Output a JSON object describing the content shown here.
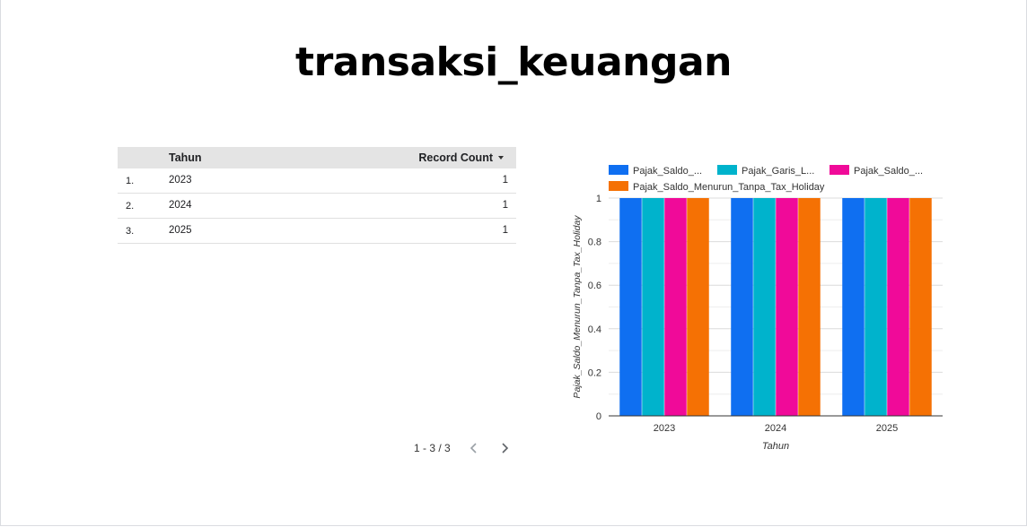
{
  "report": {
    "title": "transaksi_keuangan"
  },
  "table": {
    "headers": {
      "year": "Tahun",
      "count": "Record Count"
    },
    "rows": [
      {
        "num": "1.",
        "year": "2023",
        "count": "1"
      },
      {
        "num": "2.",
        "year": "2024",
        "count": "1"
      },
      {
        "num": "3.",
        "year": "2025",
        "count": "1"
      }
    ],
    "pagination": "1 - 3 / 3"
  },
  "chart_data": {
    "type": "bar",
    "categories": [
      "2023",
      "2024",
      "2025"
    ],
    "series": [
      {
        "name": "Pajak_Saldo_...",
        "color": "#0f6ff1",
        "values": [
          1,
          1,
          1
        ]
      },
      {
        "name": "Pajak_Garis_L...",
        "color": "#00b3cc",
        "values": [
          1,
          1,
          1
        ]
      },
      {
        "name": "Pajak_Saldo_...",
        "color": "#f00a99",
        "values": [
          1,
          1,
          1
        ]
      },
      {
        "name": "Pajak_Saldo_Menurun_Tanpa_Tax_Holiday",
        "color": "#f57104",
        "values": [
          1,
          1,
          1
        ]
      }
    ],
    "xlabel": "Tahun",
    "ylabel": "Pajak_Saldo_Menurun_Tanpa_Tax_Holiday",
    "ylim": [
      0,
      1
    ],
    "yticks": [
      "0",
      "0.2",
      "0.4",
      "0.6",
      "0.8",
      "1"
    ],
    "grid": true,
    "legend": "top"
  }
}
